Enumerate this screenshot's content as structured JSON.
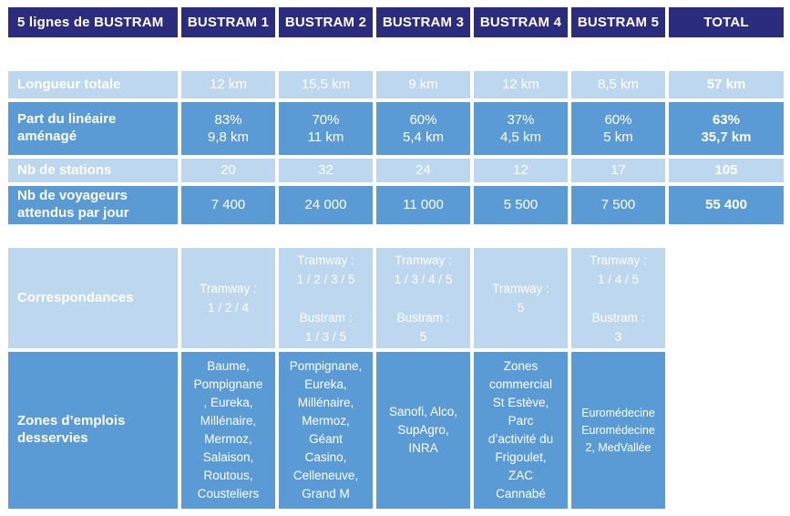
{
  "title_row": {
    "label": "5 lignes de BUSTRAM",
    "columns": [
      "BUSTRAM 1",
      "BUSTRAM 2",
      "BUSTRAM 3",
      "BUSTRAM 4",
      "BUSTRAM 5",
      "TOTAL"
    ]
  },
  "metrics_table": {
    "rows": [
      {
        "label": "Longueur totale",
        "values": [
          "12 km",
          "15,5 km",
          "9 km",
          "12 km",
          "8,5 km",
          "57 km"
        ]
      },
      {
        "label": "Part du linéaire\naménagé",
        "values": [
          "83%\n9,8 km",
          "70%\n11 km",
          "60%\n5,4 km",
          "37%\n4,5 km",
          "60%\n5 km",
          "63%\n35,7 km"
        ]
      },
      {
        "label": "Nb de stations",
        "values": [
          "20",
          "32",
          "24",
          "12",
          "17",
          "105"
        ]
      },
      {
        "label": "Nb de voyageurs\nattendus par jour",
        "values": [
          "7 400",
          "24 000",
          "11 000",
          "5 500",
          "7 500",
          "55 400"
        ]
      }
    ]
  },
  "connections_table": {
    "correspondances": {
      "label": "Correspondances",
      "cells": [
        "Tramway :\n1 / 2 / 4",
        "Tramway :\n1 / 2 / 3 / 5\n\nBustram :\n1 / 3 / 5",
        "Tramway :\n1 / 3 / 4 / 5\n\nBustram :\n5",
        "Tramway :\n5",
        "Tramway :\n1 / 4 / 5\n\nBustram :\n3"
      ]
    },
    "zones": {
      "label": "Zones d’emplois\ndesservies",
      "cells": [
        "Baume,\nPompignane\n, Eureka,\nMillénaire,\nMermoz,\nSalaison,\nRoutous,\nCousteliers",
        "Pompignane,\nEureka,\nMillénaire,\nMermoz,\nGéant\nCasino,\nCelleneuve,\nGrand M",
        "Sanofi, Alco,\nSupAgro,\nINRA",
        "Zones\ncommercial\nSt Estève,\nParc\nd’activité du\nFrigoulet,\nZAC\nCannabé",
        "Euromédecine\nEuromédecine\n2, MedVallée"
      ]
    }
  },
  "colors": {
    "header_navy": "#2C2C7E",
    "row_light_blue": "#BDD7EE",
    "row_medium_blue": "#5B9BD5",
    "text": "#FFFFFF"
  }
}
